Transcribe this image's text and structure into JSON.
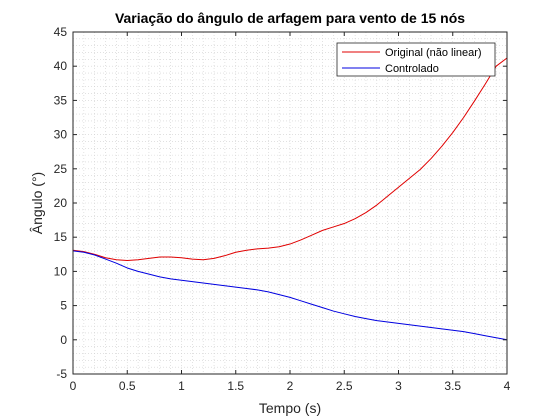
{
  "chart_data": {
    "type": "line",
    "title": "Variação do ângulo de arfagem para vento de 15 nós",
    "xlabel": "Tempo (s)",
    "ylabel": "Ângulo (°)",
    "xlim": [
      0,
      4
    ],
    "ylim": [
      -5,
      45
    ],
    "xticks": [
      "0",
      "0.5",
      "1",
      "1.5",
      "2",
      "2.5",
      "3",
      "3.5",
      "4"
    ],
    "yticks": [
      "-5",
      "0",
      "5",
      "10",
      "15",
      "20",
      "25",
      "30",
      "35",
      "40",
      "45"
    ],
    "grid": "minor-dotted",
    "legend_position": "top-right",
    "series": [
      {
        "name": "Original (não linear)",
        "color": "#e00000",
        "x": [
          0,
          0.1,
          0.2,
          0.3,
          0.4,
          0.5,
          0.6,
          0.7,
          0.8,
          0.9,
          1.0,
          1.1,
          1.2,
          1.3,
          1.4,
          1.5,
          1.6,
          1.7,
          1.8,
          1.9,
          2.0,
          2.1,
          2.2,
          2.3,
          2.4,
          2.5,
          2.6,
          2.7,
          2.8,
          2.9,
          3.0,
          3.1,
          3.2,
          3.3,
          3.4,
          3.5,
          3.6,
          3.7,
          3.8,
          3.9,
          4.0
        ],
        "y": [
          13.1,
          12.9,
          12.5,
          12.0,
          11.7,
          11.6,
          11.7,
          11.9,
          12.1,
          12.1,
          12.0,
          11.8,
          11.7,
          11.9,
          12.3,
          12.8,
          13.1,
          13.3,
          13.4,
          13.6,
          14.0,
          14.6,
          15.3,
          16.0,
          16.5,
          17.0,
          17.7,
          18.6,
          19.7,
          21.0,
          22.3,
          23.6,
          24.9,
          26.5,
          28.3,
          30.3,
          32.5,
          34.9,
          37.4,
          40.0,
          41.2
        ]
      },
      {
        "name": "Controlado",
        "color": "#0000e0",
        "x": [
          0,
          0.1,
          0.2,
          0.3,
          0.4,
          0.5,
          0.6,
          0.7,
          0.8,
          0.9,
          1.0,
          1.1,
          1.2,
          1.3,
          1.4,
          1.5,
          1.6,
          1.7,
          1.8,
          1.9,
          2.0,
          2.1,
          2.2,
          2.3,
          2.4,
          2.5,
          2.6,
          2.7,
          2.8,
          2.9,
          3.0,
          3.1,
          3.2,
          3.3,
          3.4,
          3.5,
          3.6,
          3.7,
          3.8,
          3.9,
          4.0
        ],
        "y": [
          13.0,
          12.8,
          12.4,
          11.8,
          11.2,
          10.5,
          10.0,
          9.6,
          9.2,
          8.9,
          8.7,
          8.5,
          8.3,
          8.1,
          7.9,
          7.7,
          7.5,
          7.3,
          7.0,
          6.6,
          6.2,
          5.7,
          5.2,
          4.7,
          4.2,
          3.8,
          3.4,
          3.1,
          2.8,
          2.6,
          2.4,
          2.2,
          2.0,
          1.8,
          1.6,
          1.4,
          1.2,
          0.9,
          0.6,
          0.3,
          0.0
        ]
      }
    ]
  }
}
